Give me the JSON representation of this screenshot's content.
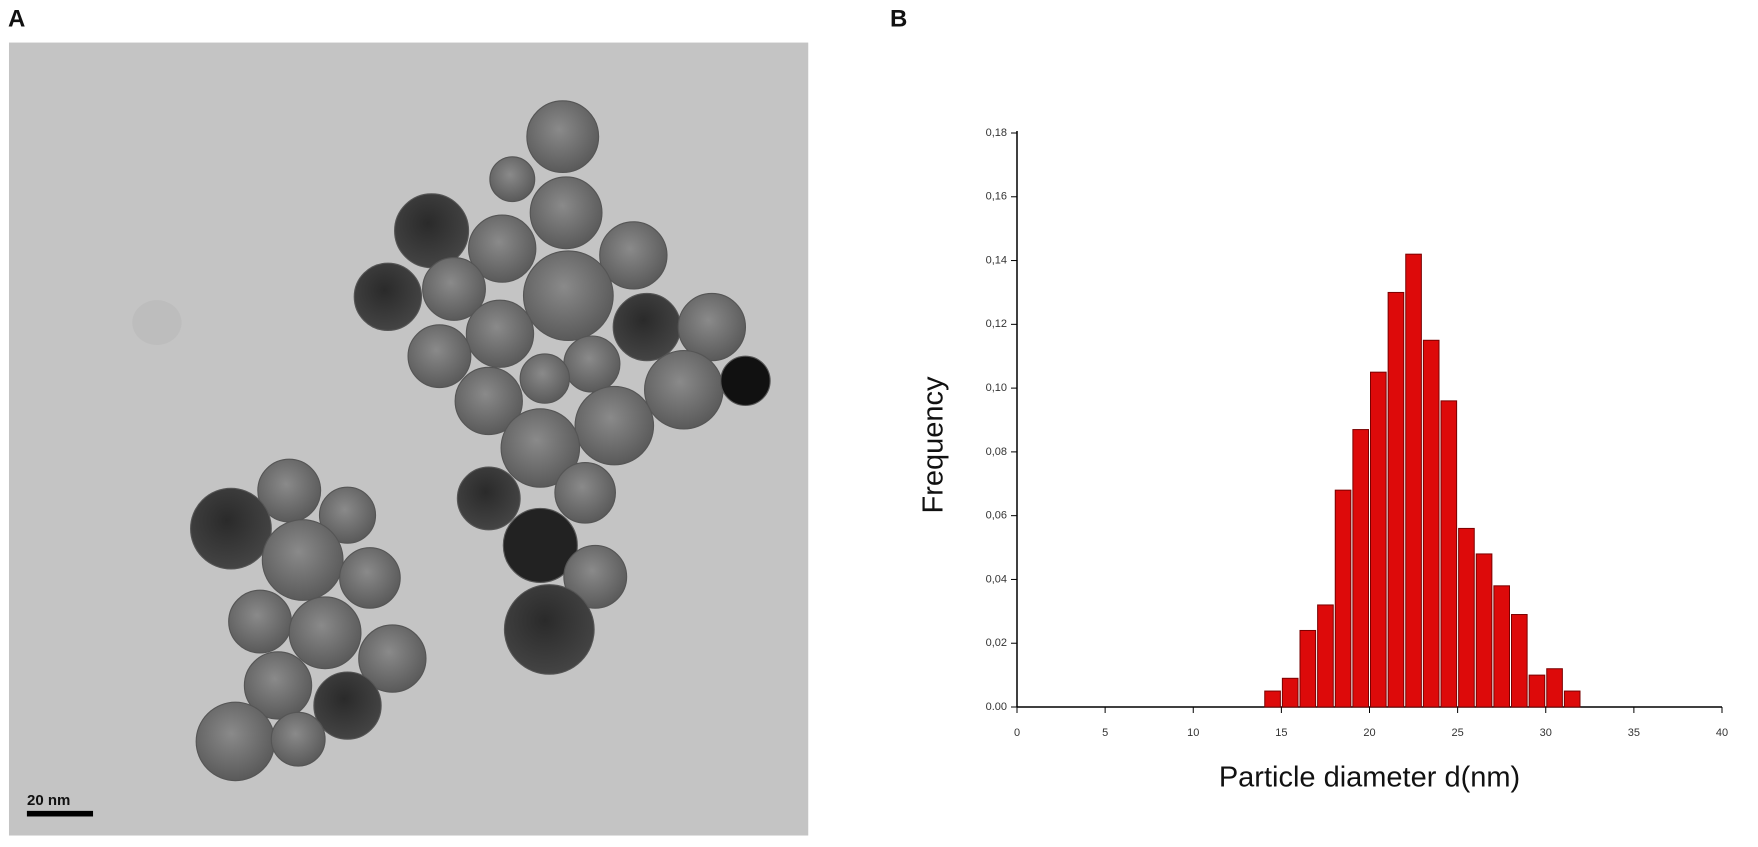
{
  "panel_a": {
    "label": "A",
    "scale_bar": "20 nm"
  },
  "chart_data": {
    "type": "histogram",
    "panel_label": "B",
    "x_label": "Particle diameter d(nm)",
    "y_label": "Frequency",
    "bins": [
      14,
      15,
      16,
      17,
      18,
      19,
      20,
      21,
      22,
      23,
      24,
      25,
      26,
      27,
      28,
      29,
      30,
      31,
      32
    ],
    "values": [
      0.005,
      0.009,
      0.024,
      0.032,
      0.068,
      0.087,
      0.105,
      0.13,
      0.142,
      0.115,
      0.096,
      0.056,
      0.048,
      0.038,
      0.029,
      0.01,
      0.012,
      0.005
    ],
    "color": "#dd0a0a",
    "xlim": [
      0,
      40
    ],
    "ylim": [
      0,
      0.18
    ],
    "xticks": [
      0,
      5,
      10,
      15,
      20,
      25,
      30,
      35,
      40
    ],
    "yticks": [
      {
        "value": 0,
        "label": "0.00"
      },
      {
        "value": 0.02,
        "label": "0,02"
      },
      {
        "value": 0.04,
        "label": "0,04"
      },
      {
        "value": 0.06,
        "label": "0,06"
      },
      {
        "value": 0.08,
        "label": "0,08"
      },
      {
        "value": 0.1,
        "label": "0,10"
      },
      {
        "value": 0.12,
        "label": "0,12"
      },
      {
        "value": 0.14,
        "label": "0,14"
      },
      {
        "value": 0.16,
        "label": "0,16"
      },
      {
        "value": 0.18,
        "label": "0,18"
      }
    ]
  }
}
